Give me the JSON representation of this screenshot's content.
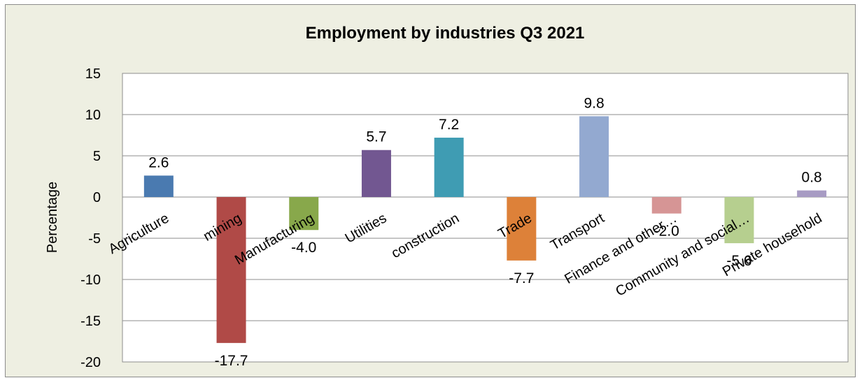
{
  "chart_data": {
    "type": "bar",
    "title": "Employment by industries Q3 2021",
    "xlabel": "",
    "ylabel": "Percentage",
    "ylim": [
      -20,
      15
    ],
    "yticks": [
      "15",
      "10",
      "5",
      "0",
      "-5",
      "-10",
      "-15",
      "-20"
    ],
    "grid": true,
    "legend": "none",
    "categories": [
      "Agriculture",
      "mining",
      "Manufacturing",
      "Utilities",
      "construction",
      "Trade",
      "Transport",
      "Finance and other…",
      "Community and social…",
      "Private household"
    ],
    "values": [
      2.6,
      -17.7,
      -4.0,
      5.7,
      7.2,
      -7.7,
      9.8,
      -2.0,
      -5.6,
      0.8
    ],
    "value_labels": [
      "2.6",
      "-17.7",
      "-4.0",
      "5.7",
      "7.2",
      "-7.7",
      "9.8",
      "-2.0",
      "-5.6",
      "0.8"
    ],
    "colors": [
      "#4a7ab0",
      "#b04a47",
      "#88a84b",
      "#725791",
      "#3f9cb3",
      "#dd8139",
      "#93a9d0",
      "#d69595",
      "#b6cf8f",
      "#a79bc3"
    ]
  }
}
